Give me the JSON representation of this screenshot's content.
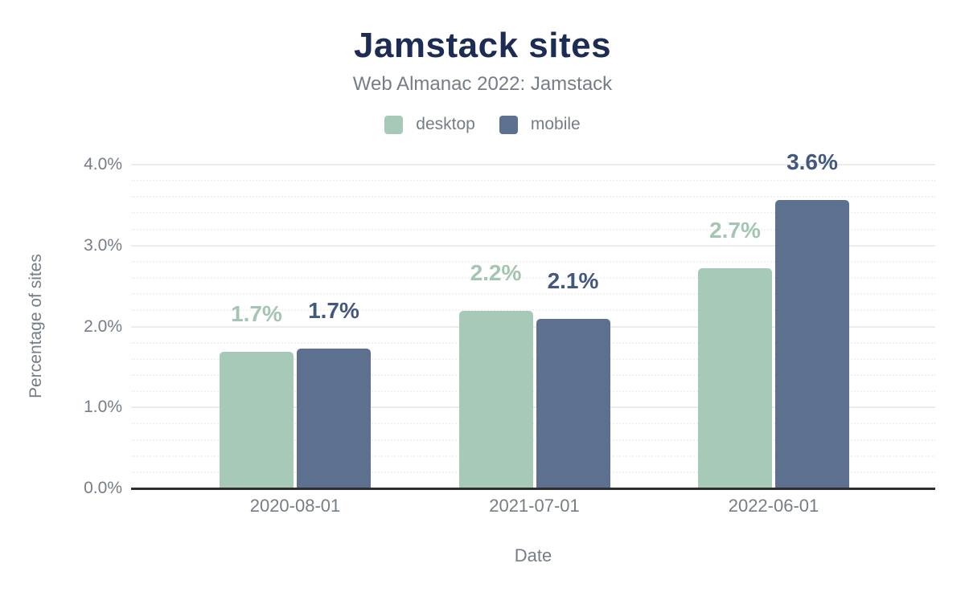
{
  "header": {
    "title": "Jamstack sites",
    "subtitle": "Web Almanac 2022: Jamstack"
  },
  "legend": {
    "items": [
      {
        "label": "desktop",
        "color": "#a7c9b8"
      },
      {
        "label": "mobile",
        "color": "#5e7090"
      }
    ]
  },
  "chart_data": {
    "type": "bar",
    "title": "Jamstack sites",
    "subtitle": "Web Almanac 2022: Jamstack",
    "categories": [
      "2020-08-01",
      "2021-07-01",
      "2022-06-01"
    ],
    "series": [
      {
        "name": "desktop",
        "color": "#a7c9b8",
        "label_color": "#a3c5b2",
        "values": [
          1.7,
          2.2,
          2.7
        ],
        "values_precise": [
          1.69,
          2.19,
          2.72
        ],
        "labels": [
          "1.7%",
          "2.2%",
          "2.7%"
        ]
      },
      {
        "name": "mobile",
        "color": "#5e7090",
        "label_color": "#44587e",
        "values": [
          1.7,
          2.1,
          3.6
        ],
        "values_precise": [
          1.73,
          2.09,
          3.56
        ],
        "labels": [
          "1.7%",
          "2.1%",
          "3.6%"
        ]
      }
    ],
    "xlabel": "Date",
    "ylabel": "Percentage of sites",
    "ylim": [
      0,
      4
    ],
    "ytick_step": 1.0,
    "ytick_labels": [
      "0.0%",
      "1.0%",
      "2.0%",
      "3.0%",
      "4.0%"
    ],
    "minor_tick_step": 0.2,
    "grid": true,
    "legend_position": "top"
  },
  "colors": {
    "title": "#1d2c52",
    "subtitle": "#757d87",
    "axis_text": "#757d87",
    "axis_line": "#2e2e2e",
    "grid_major": "#ececec",
    "grid_minor": "#f2f2f2",
    "background": "#ffffff"
  }
}
